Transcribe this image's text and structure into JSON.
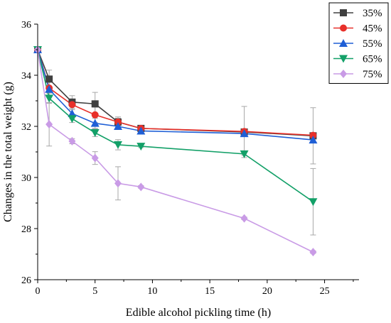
{
  "chart_data": {
    "type": "line",
    "title": "",
    "xlabel": "Edible alcohol pickling time (h)",
    "ylabel": "Changes in the total weight (g)",
    "xlim": [
      0,
      28
    ],
    "ylim": [
      26,
      36
    ],
    "xticks": [
      0,
      5,
      10,
      15,
      20,
      25
    ],
    "yticks": [
      26,
      28,
      30,
      32,
      34,
      36
    ],
    "grid": false,
    "legend_position": "top-right",
    "series": [
      {
        "name": "35%",
        "color": "#404040",
        "marker": "square",
        "x": [
          0,
          1,
          3,
          5,
          7,
          9,
          18,
          24
        ],
        "y": [
          35.0,
          33.85,
          32.95,
          32.88,
          32.17,
          31.92,
          31.78,
          31.63
        ],
        "err": [
          0,
          0.35,
          0.25,
          0.45,
          0.2,
          0.1,
          1.0,
          1.1
        ]
      },
      {
        "name": "45%",
        "color": "#e8302a",
        "marker": "circle",
        "x": [
          0,
          1,
          3,
          5,
          7,
          9,
          18,
          24
        ],
        "y": [
          35.0,
          33.5,
          32.85,
          32.45,
          32.17,
          31.92,
          31.8,
          31.65
        ],
        "err": [
          0,
          0.3,
          0.2,
          0.3,
          0.15,
          0.1,
          0.1,
          0.1
        ]
      },
      {
        "name": "55%",
        "color": "#1f5fd6",
        "marker": "triangle-up",
        "x": [
          0,
          1,
          3,
          5,
          7,
          9,
          18,
          24
        ],
        "y": [
          35.0,
          33.45,
          32.5,
          32.12,
          32.0,
          31.82,
          31.72,
          31.47
        ],
        "err": [
          0,
          0.3,
          0.2,
          0.2,
          0.1,
          0.1,
          0.1,
          0.1
        ]
      },
      {
        "name": "65%",
        "color": "#13a068",
        "marker": "triangle-down",
        "x": [
          0,
          1,
          3,
          5,
          7,
          9,
          18,
          24
        ],
        "y": [
          35.0,
          33.1,
          32.3,
          31.75,
          31.28,
          31.22,
          30.92,
          29.05
        ],
        "err": [
          0,
          0.2,
          0.15,
          0.15,
          0.2,
          0.05,
          0.05,
          1.3
        ]
      },
      {
        "name": "75%",
        "color": "#c99be6",
        "marker": "diamond",
        "x": [
          0,
          1,
          3,
          5,
          7,
          9,
          18,
          24
        ],
        "y": [
          35.0,
          32.08,
          31.42,
          30.76,
          29.77,
          29.63,
          28.4,
          27.08
        ],
        "err": [
          0,
          0.85,
          0.1,
          0.25,
          0.65,
          0.05,
          0.05,
          0.05
        ]
      }
    ]
  }
}
